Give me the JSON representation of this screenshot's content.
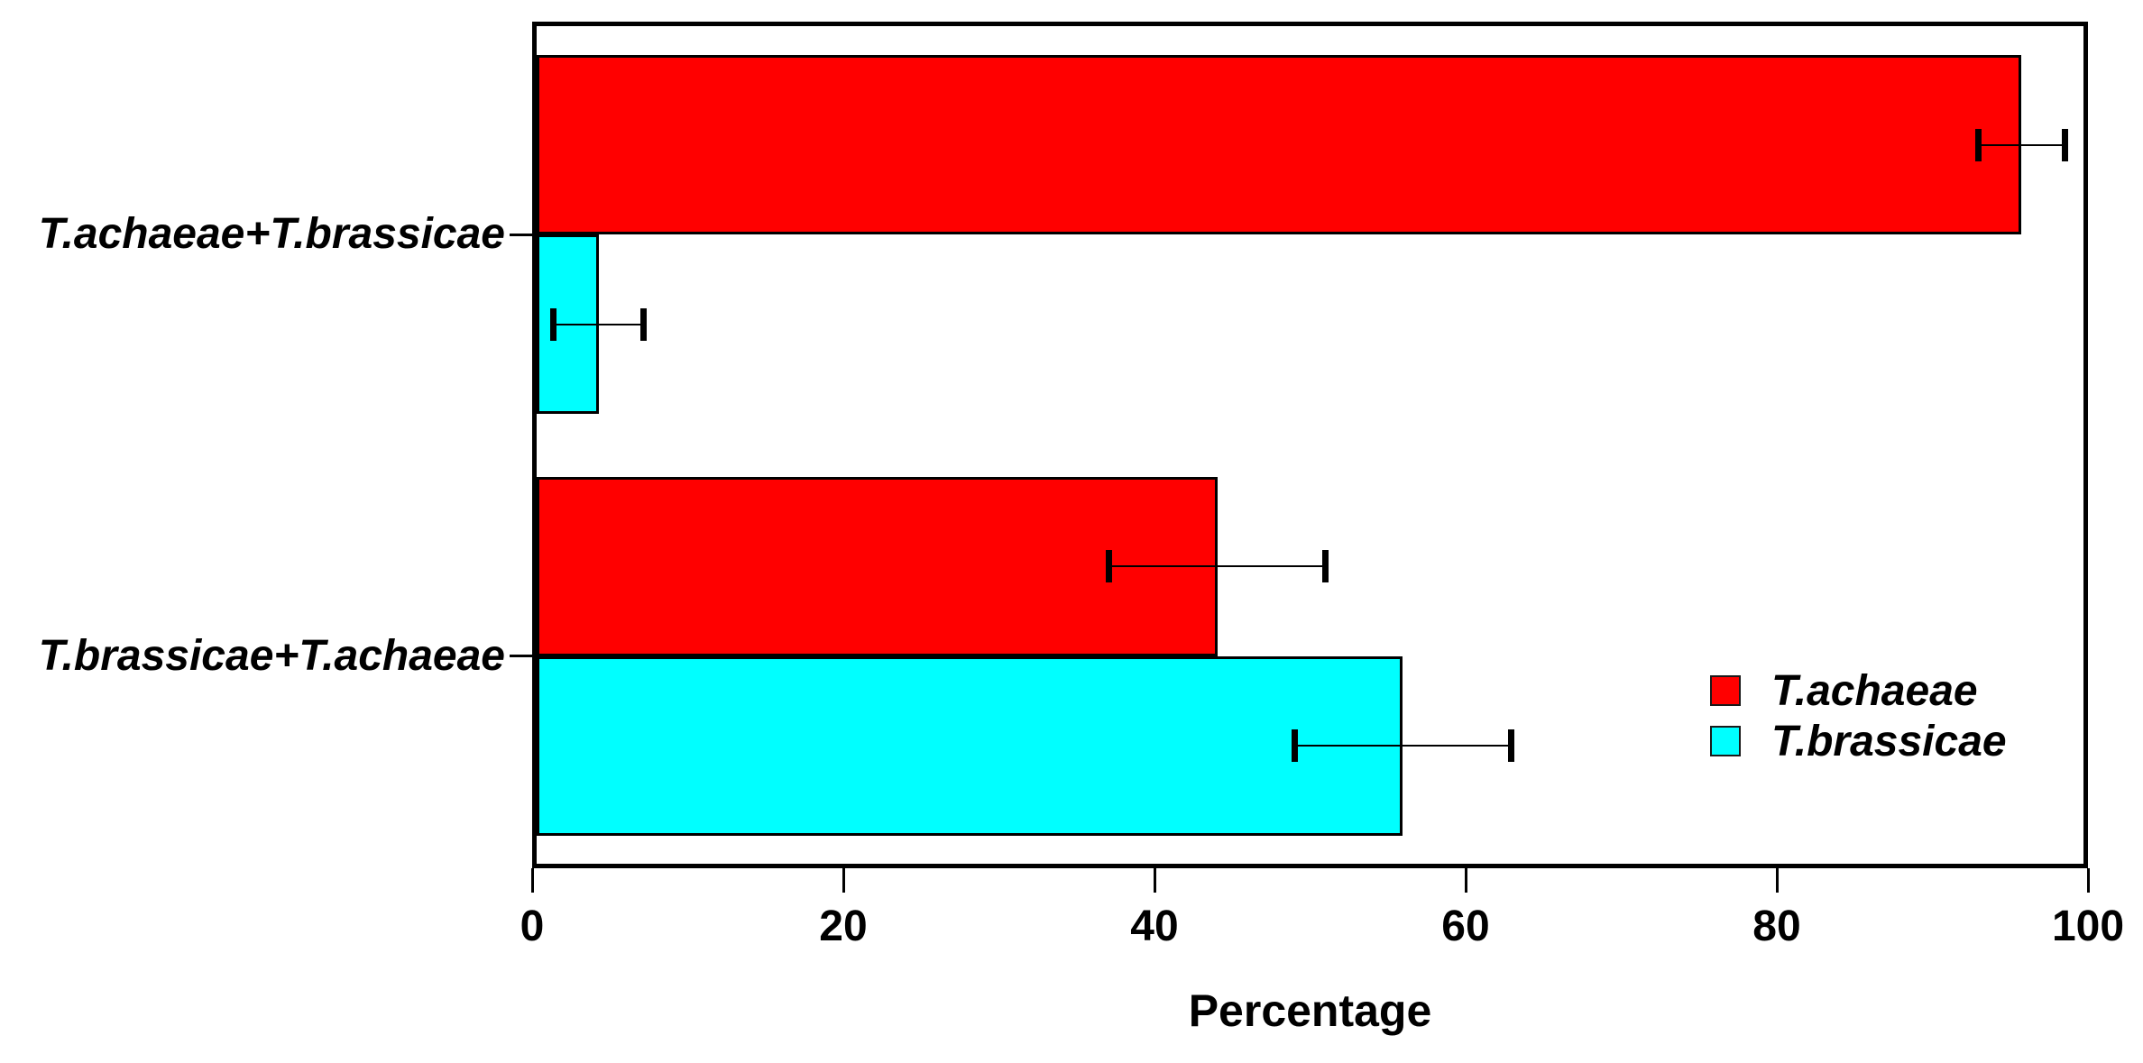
{
  "chart_data": {
    "type": "bar",
    "orientation": "horizontal",
    "title": "",
    "xlabel": "Percentage",
    "ylabel": "",
    "xlim": [
      0,
      100
    ],
    "xticks": [
      0,
      20,
      40,
      60,
      80,
      100
    ],
    "grid": false,
    "categories": [
      "T.achaeae+T.brassicae",
      "T.brassicae+T.achaeae"
    ],
    "series": [
      {
        "name": "T.achaeae",
        "color": "#ff0000",
        "values": [
          96,
          44
        ],
        "errors": [
          2.8,
          7
        ]
      },
      {
        "name": "T.brassicae",
        "color": "#00ffff",
        "values": [
          4,
          56
        ],
        "errors": [
          2.9,
          7
        ]
      }
    ],
    "error_bar_color": "#000000",
    "bar_edge_color": "#000000",
    "legend_position": "inside-right-middle"
  }
}
